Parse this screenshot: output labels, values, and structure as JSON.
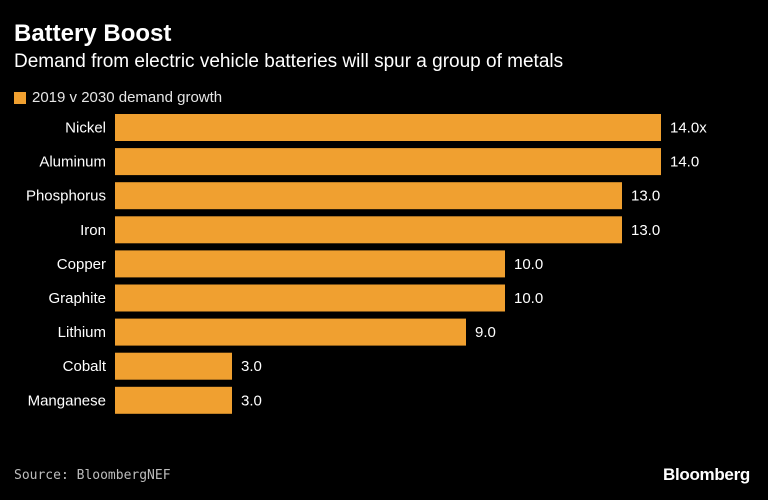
{
  "header": {
    "title": "Battery Boost",
    "subtitle": "Demand from electric vehicle batteries will spur a group of metals"
  },
  "legend": {
    "label": "2019 v 2030 demand growth",
    "color": "#f0a030"
  },
  "chart_data": {
    "type": "bar",
    "orientation": "horizontal",
    "categories": [
      "Nickel",
      "Aluminum",
      "Phosphorus",
      "Iron",
      "Copper",
      "Graphite",
      "Lithium",
      "Cobalt",
      "Manganese"
    ],
    "series": [
      {
        "name": "2019 v 2030 demand growth",
        "values": [
          14.0,
          14.0,
          13.0,
          13.0,
          10.0,
          10.0,
          9.0,
          3.0,
          3.0
        ],
        "labels": [
          "14.0x",
          "14.0",
          "13.0",
          "13.0",
          "10.0",
          "10.0",
          "9.0",
          "3.0",
          "3.0"
        ]
      }
    ],
    "xlim": [
      0,
      14.5
    ],
    "grid": false,
    "legend_position": "top-left",
    "bar_color": "#f0a030",
    "background": "#000000"
  },
  "footer": {
    "source": "Source: BloombergNEF",
    "brand": "Bloomberg"
  }
}
